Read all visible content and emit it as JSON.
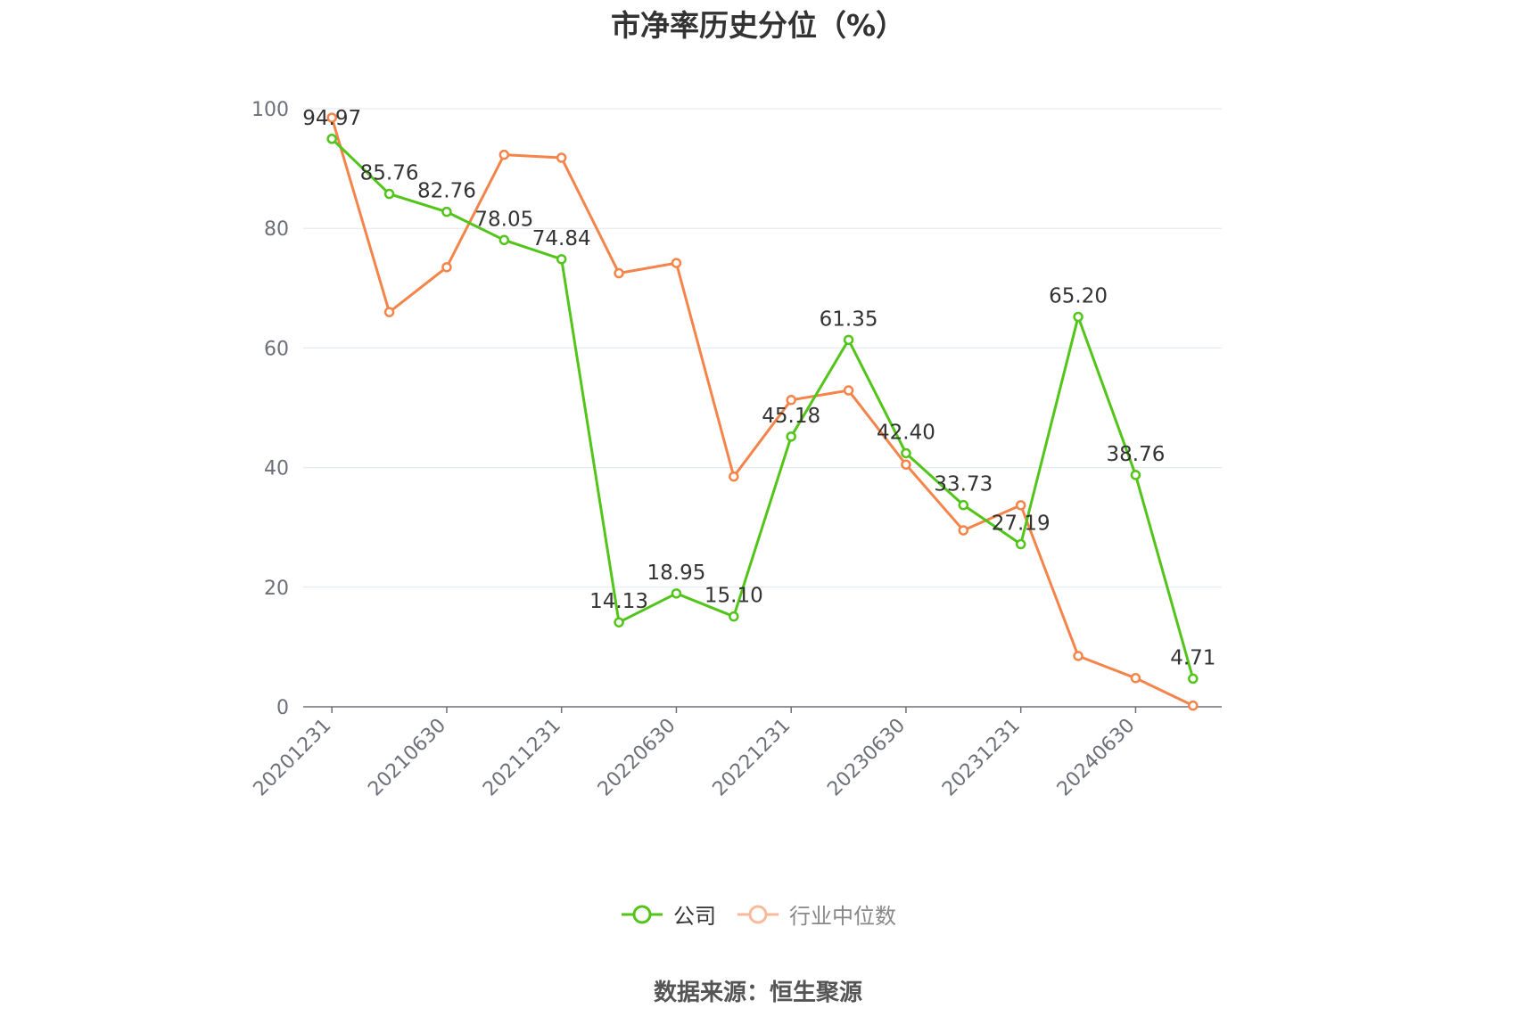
{
  "title": "市净率历史分位（%）",
  "source": "数据来源：恒生聚源",
  "colors": {
    "company": "#52c41a",
    "industry": "#f5844a",
    "grid": "#e0e6f1",
    "axis": "#6e7079"
  },
  "legend": {
    "company_label": "公司",
    "industry_label": "行业中位数"
  },
  "chart_data": {
    "type": "line",
    "title": "市净率历史分位（%）",
    "x": [
      "20201231",
      "20210331",
      "20210630",
      "20210930",
      "20211231",
      "20220331",
      "20220630",
      "20220930",
      "20221231",
      "20230331",
      "20230630",
      "20230930",
      "20231231",
      "20240331",
      "20240630",
      "20240930"
    ],
    "x_tick_labels": [
      "20201231",
      "20210630",
      "20211231",
      "20220630",
      "20221231",
      "20230630",
      "20231231",
      "20240630"
    ],
    "y_ticks": [
      "0",
      "20",
      "40",
      "60",
      "80",
      "100"
    ],
    "ylim": [
      0,
      100
    ],
    "grid": true,
    "legend_position": "bottom",
    "series": [
      {
        "name": "公司",
        "values": [
          94.97,
          85.76,
          82.76,
          78.05,
          74.84,
          14.13,
          18.95,
          15.1,
          45.18,
          61.35,
          42.4,
          33.73,
          27.19,
          65.2,
          38.76,
          4.71
        ],
        "labels": [
          "94.97",
          "85.76",
          "82.76",
          "78.05",
          "74.84",
          "14.13",
          "18.95",
          "15.10",
          "45.18",
          "61.35",
          "42.40",
          "33.73",
          "27.19",
          "65.20",
          "38.76",
          "4.71"
        ]
      },
      {
        "name": "行业中位数",
        "values": [
          98.5,
          66.0,
          73.5,
          92.3,
          91.8,
          72.5,
          74.2,
          38.5,
          51.3,
          52.9,
          40.5,
          29.5,
          33.7,
          8.5,
          4.8,
          0.2
        ]
      }
    ]
  }
}
